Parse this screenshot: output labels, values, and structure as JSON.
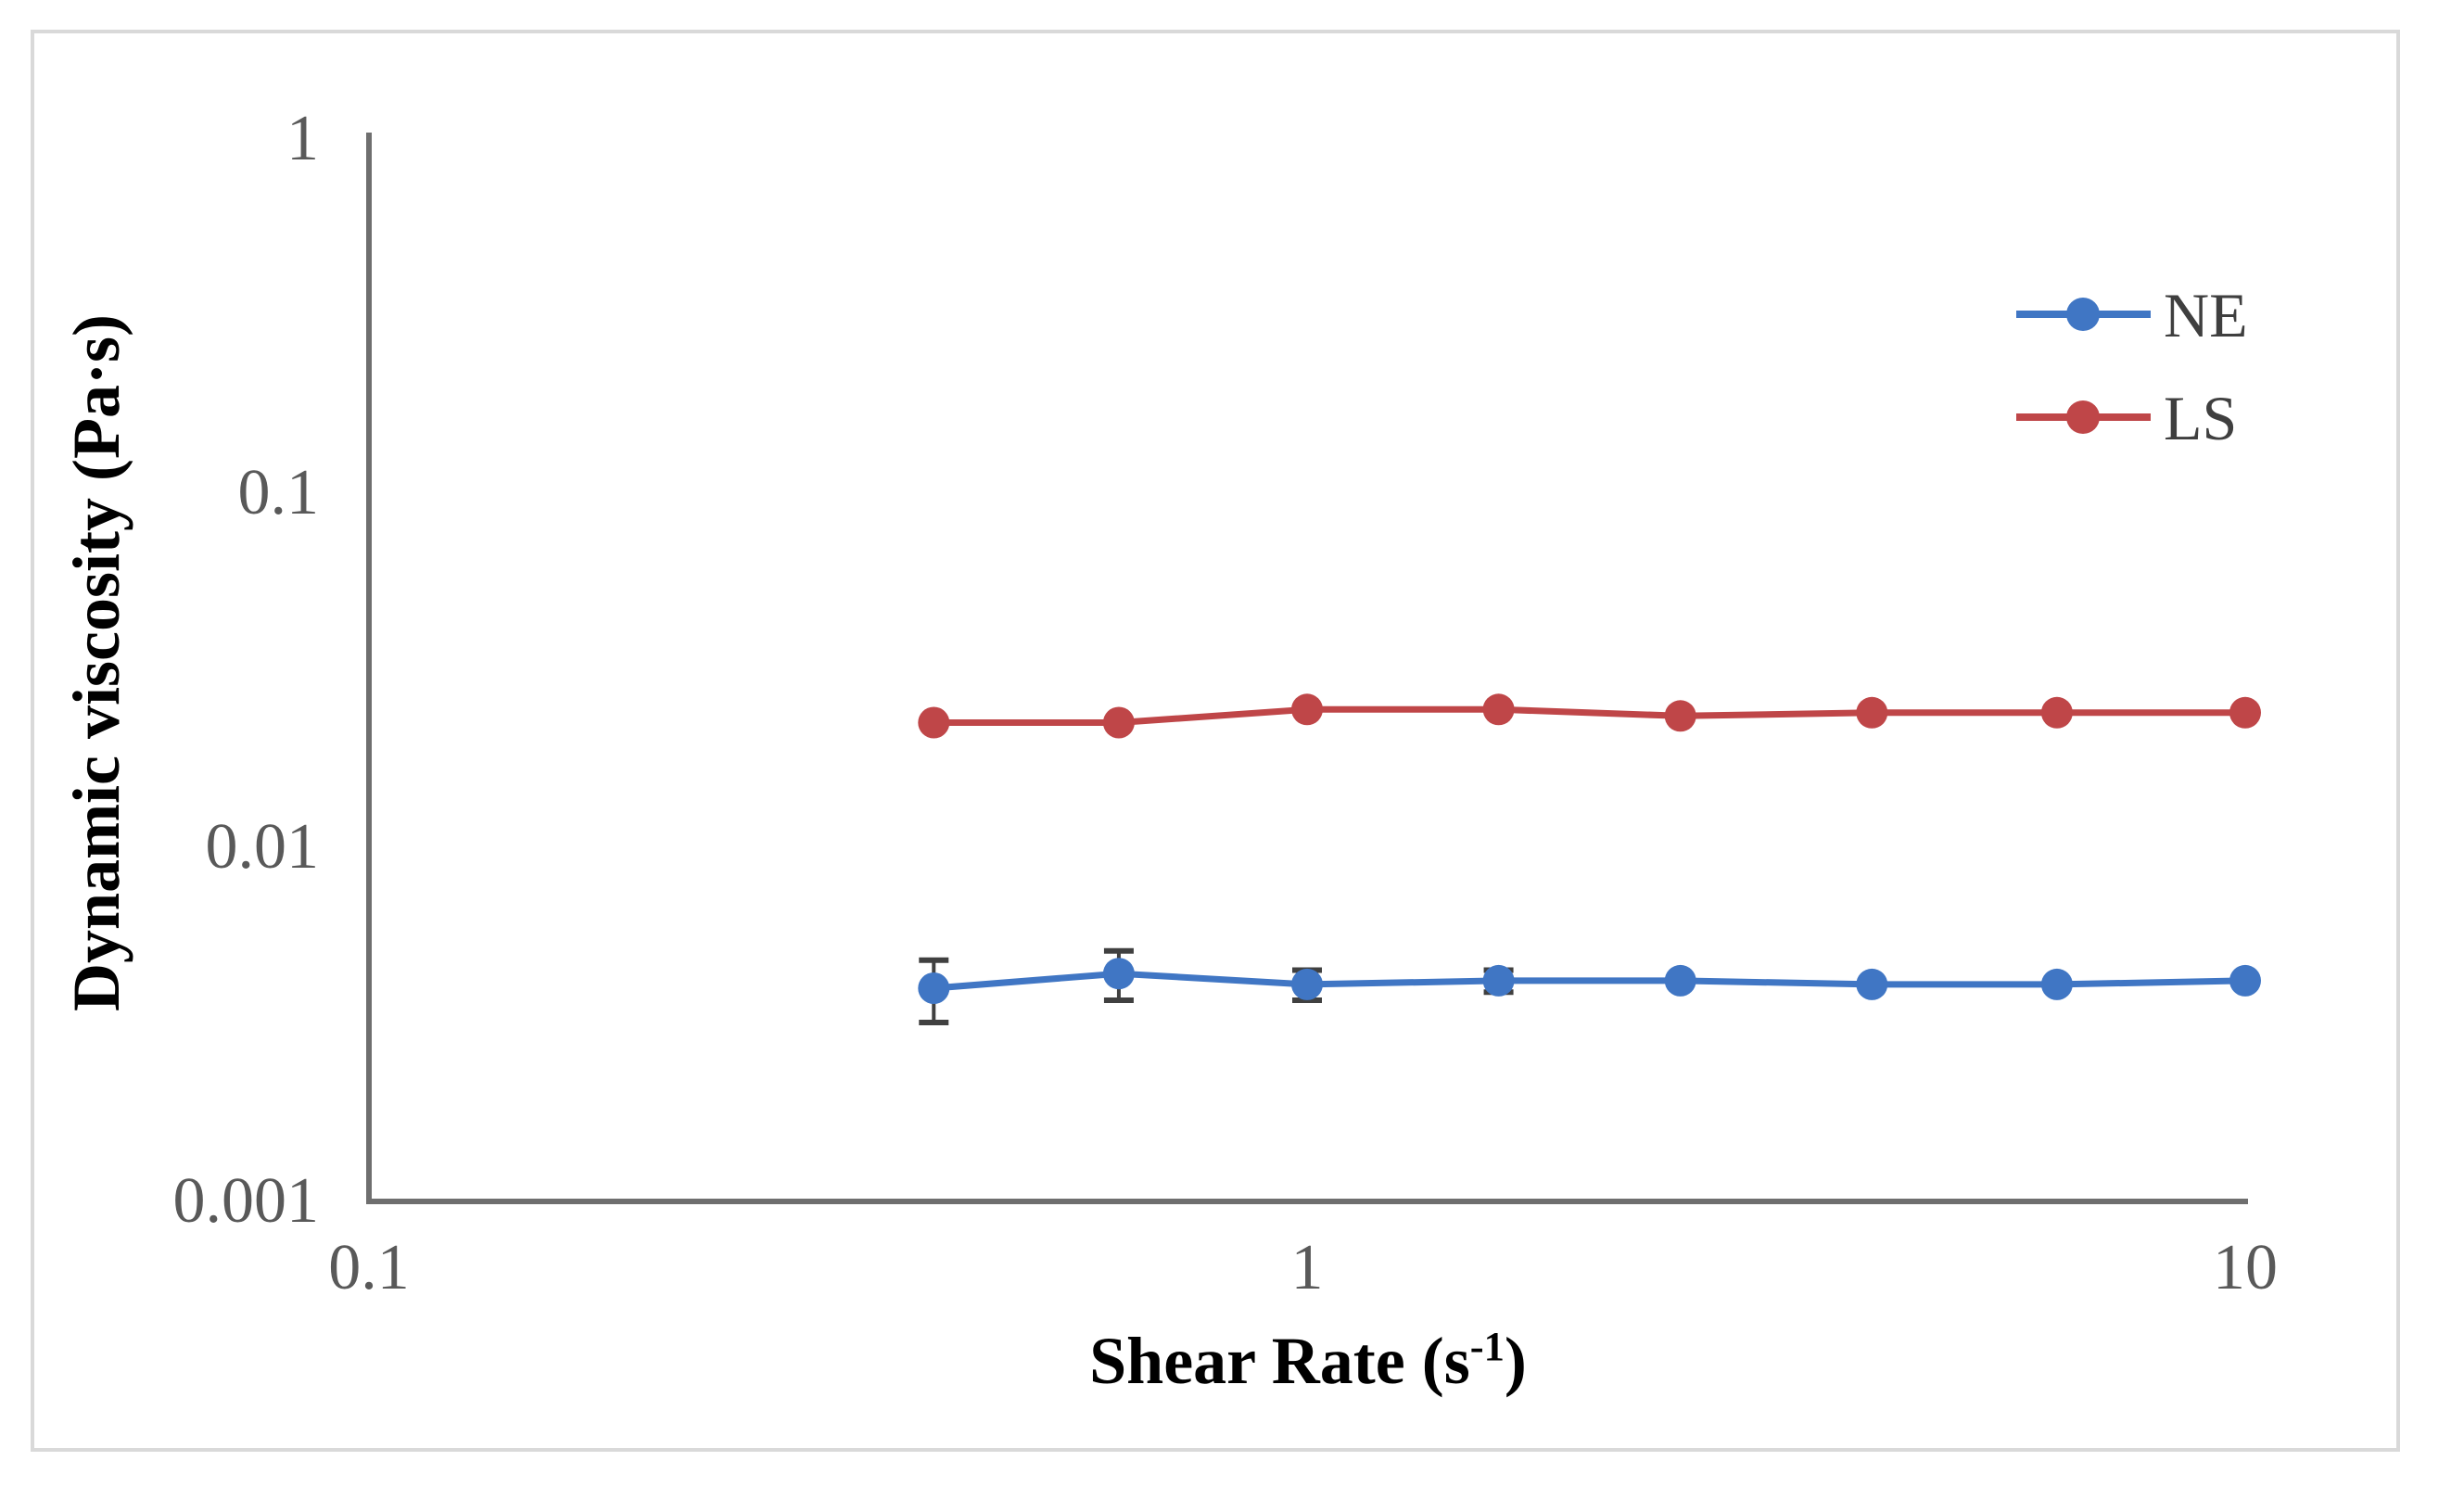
{
  "chart_data": {
    "type": "line",
    "title": "",
    "x_scale": "log",
    "y_scale": "log",
    "xlabel_base": "Shear Rate (s",
    "xlabel_sup": "-1",
    "xlabel_end": ")",
    "ylabel": "Dynamic viscosity (Pa·s)",
    "xlim": [
      0.1,
      10
    ],
    "ylim": [
      0.001,
      1
    ],
    "grid": false,
    "legend_position": "upper-right",
    "x": [
      0.4,
      0.63,
      1.0,
      1.6,
      2.5,
      4.0,
      6.3,
      10
    ],
    "series": [
      {
        "name": "NE",
        "color": "#4076c4",
        "values": [
          0.004,
          0.0044,
          0.0041,
          0.0042,
          0.0042,
          0.0041,
          0.0041,
          0.0042
        ],
        "error": [
          0.0008,
          0.0007,
          0.0004,
          0.0003,
          0,
          0,
          0,
          0
        ]
      },
      {
        "name": "LS",
        "color": "#bf4648",
        "values": [
          0.0225,
          0.0225,
          0.0245,
          0.0245,
          0.0235,
          0.024,
          0.024,
          0.024
        ],
        "error": [
          0,
          0,
          0,
          0,
          0,
          0,
          0,
          0
        ]
      }
    ],
    "x_ticks": [
      {
        "value": 0.1,
        "label": "0.1"
      },
      {
        "value": 1,
        "label": "1"
      },
      {
        "value": 10,
        "label": "10"
      }
    ],
    "y_ticks": [
      {
        "value": 1,
        "label": "1"
      },
      {
        "value": 0.1,
        "label": "0.1"
      },
      {
        "value": 0.01,
        "label": "0.01"
      },
      {
        "value": 0.001,
        "label": "0.001"
      }
    ]
  },
  "colors": {
    "axis": "#6f6f6f",
    "tick_text": "#595959",
    "error_bar": "#404040",
    "border": "#d9d9d9",
    "legend_text": "#3f3f3f"
  }
}
